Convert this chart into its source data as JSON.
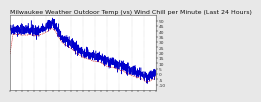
{
  "title": "Milwaukee Weather Outdoor Temp (vs) Wind Chill per Minute (Last 24 Hours)",
  "bg_color": "#e8e8e8",
  "plot_bg_color": "#ffffff",
  "line1_color": "#0000cc",
  "line2_color": "#cc0000",
  "line2_style": "dashed",
  "ylabel_color": "#333333",
  "grid_color": "#aaaaaa",
  "grid_style": "dotted",
  "title_fontsize": 4.5,
  "tick_fontsize": 3.2,
  "ytick_fontsize": 3.2,
  "n_points": 1440,
  "ylim_min": -15,
  "ylim_max": 55,
  "yticks": [
    -10,
    -5,
    0,
    5,
    10,
    15,
    20,
    25,
    30,
    35,
    40,
    45,
    50
  ],
  "num_xgrid": 12
}
